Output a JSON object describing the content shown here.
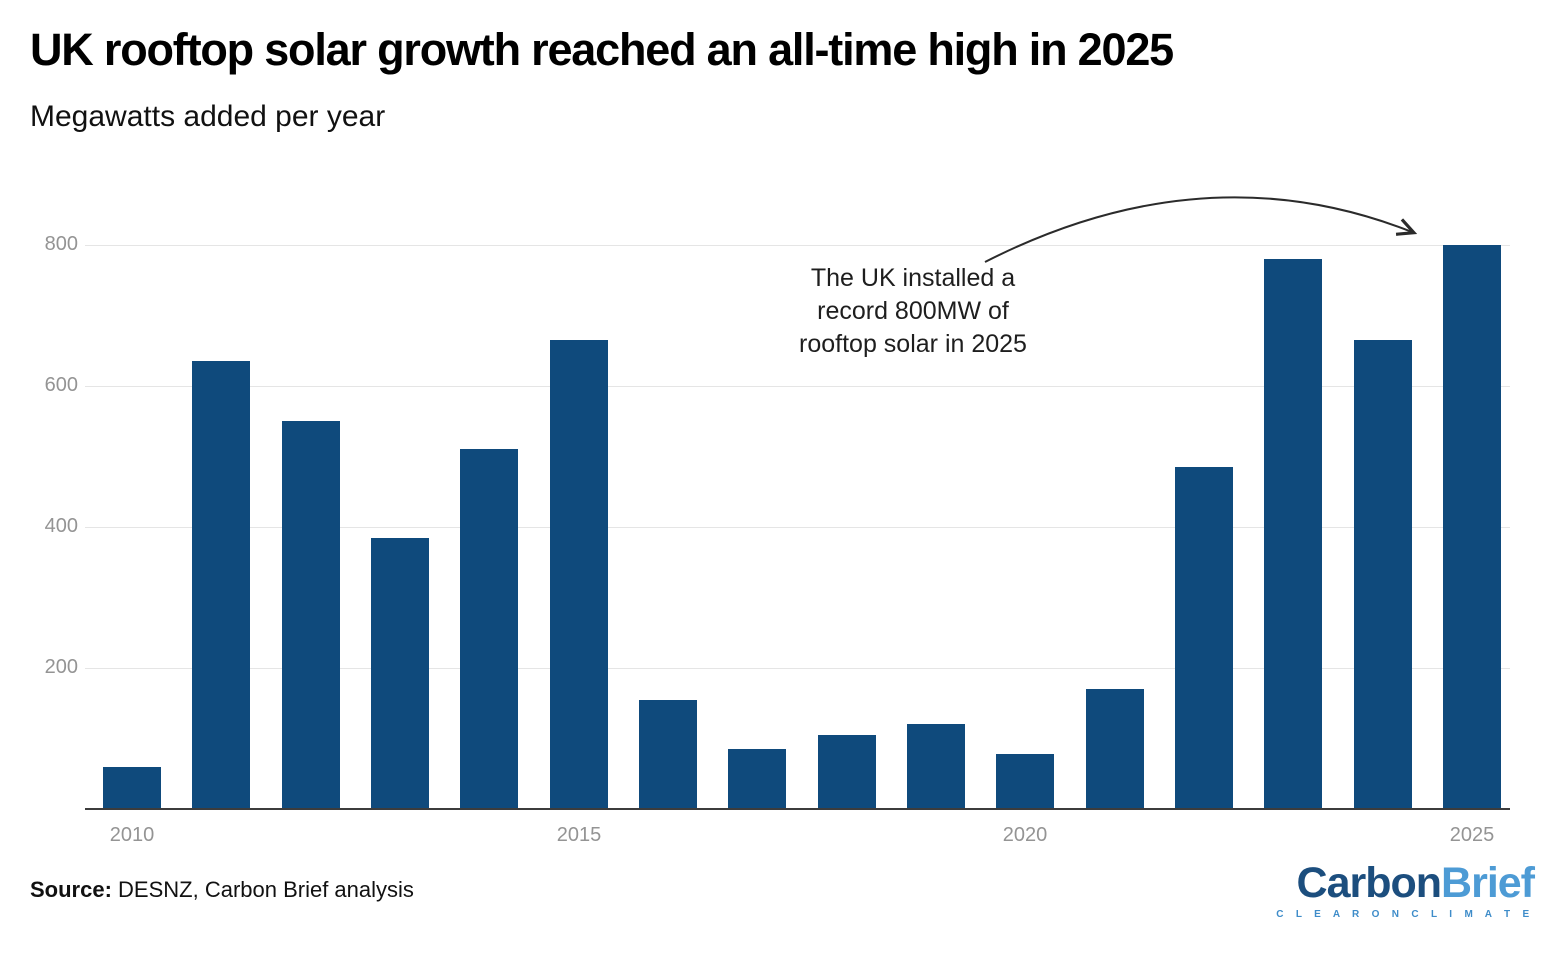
{
  "header": {
    "title": "UK rooftop solar growth reached an all-time high in 2025",
    "subtitle": "Megawatts added per year"
  },
  "chart_data": {
    "type": "bar",
    "title": "UK rooftop solar growth reached an all-time high in 2025",
    "subtitle": "Megawatts added per year",
    "xlabel": "",
    "ylabel": "Megawatts added per year",
    "categories": [
      "2010",
      "2011",
      "2012",
      "2013",
      "2014",
      "2015",
      "2016",
      "2017",
      "2018",
      "2019",
      "2020",
      "2021",
      "2022",
      "2023",
      "2024",
      "2025"
    ],
    "values": [
      60,
      635,
      550,
      385,
      510,
      665,
      155,
      85,
      105,
      120,
      78,
      170,
      485,
      780,
      665,
      800
    ],
    "y_ticks": [
      200,
      400,
      600,
      800
    ],
    "x_tick_labels": [
      "2010",
      "2015",
      "2020",
      "2025"
    ],
    "ylim": [
      0,
      830
    ],
    "grid": "horizontal-only",
    "legend": "none",
    "bar_color": "#0f4a7c",
    "gridline_color": "#e5e5e5",
    "axis_line_color": "#3c3c3c",
    "tick_label_color": "#949494",
    "annotation": {
      "text": "The UK installed a\nrecord 800MW of\nrooftop solar in 2025",
      "arrow_target": "2025 bar top"
    }
  },
  "annotation": {
    "text": "The UK installed a\nrecord 800MW of\nrooftop solar in 2025"
  },
  "source": {
    "label": "Source:",
    "text": " DESNZ, Carbon Brief analysis"
  },
  "logo": {
    "part1": "Carbon",
    "part2": "Brief",
    "tagline": "C L E A R   O N   C L I M A T E",
    "color1": "#1c4e7e",
    "color2": "#4d9bd5",
    "tagline_color": "#3e8cc9"
  }
}
